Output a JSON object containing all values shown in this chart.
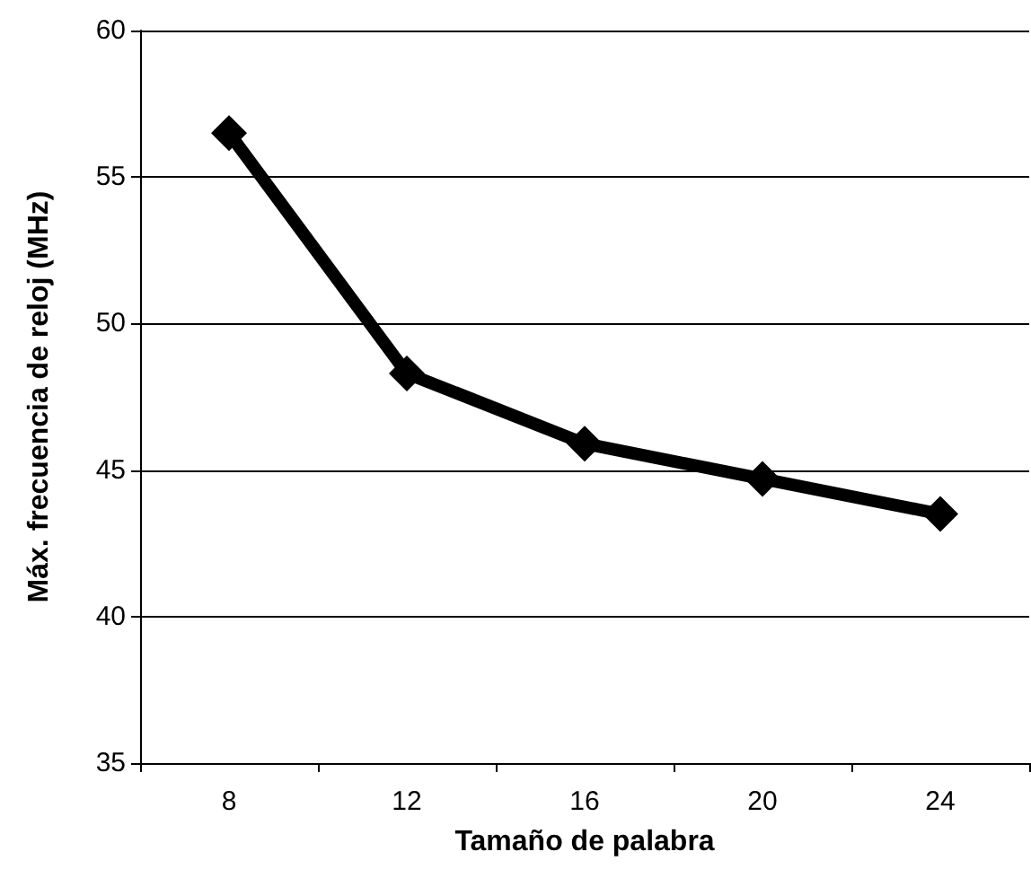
{
  "chart_data": {
    "type": "line",
    "xlabel": "Tamaño de palabra",
    "ylabel": "Máx. frecuencia de reloj (MHz)",
    "categories": [
      "8",
      "12",
      "16",
      "20",
      "24"
    ],
    "series": [
      {
        "color": "#000000",
        "values": [
          56.5,
          48.3,
          45.9,
          44.7,
          43.5
        ]
      }
    ],
    "ylim": [
      35,
      60
    ],
    "yticks": [
      35,
      40,
      45,
      50,
      55,
      60
    ],
    "grid": "y",
    "marker": "diamond",
    "line_style": "solid"
  }
}
